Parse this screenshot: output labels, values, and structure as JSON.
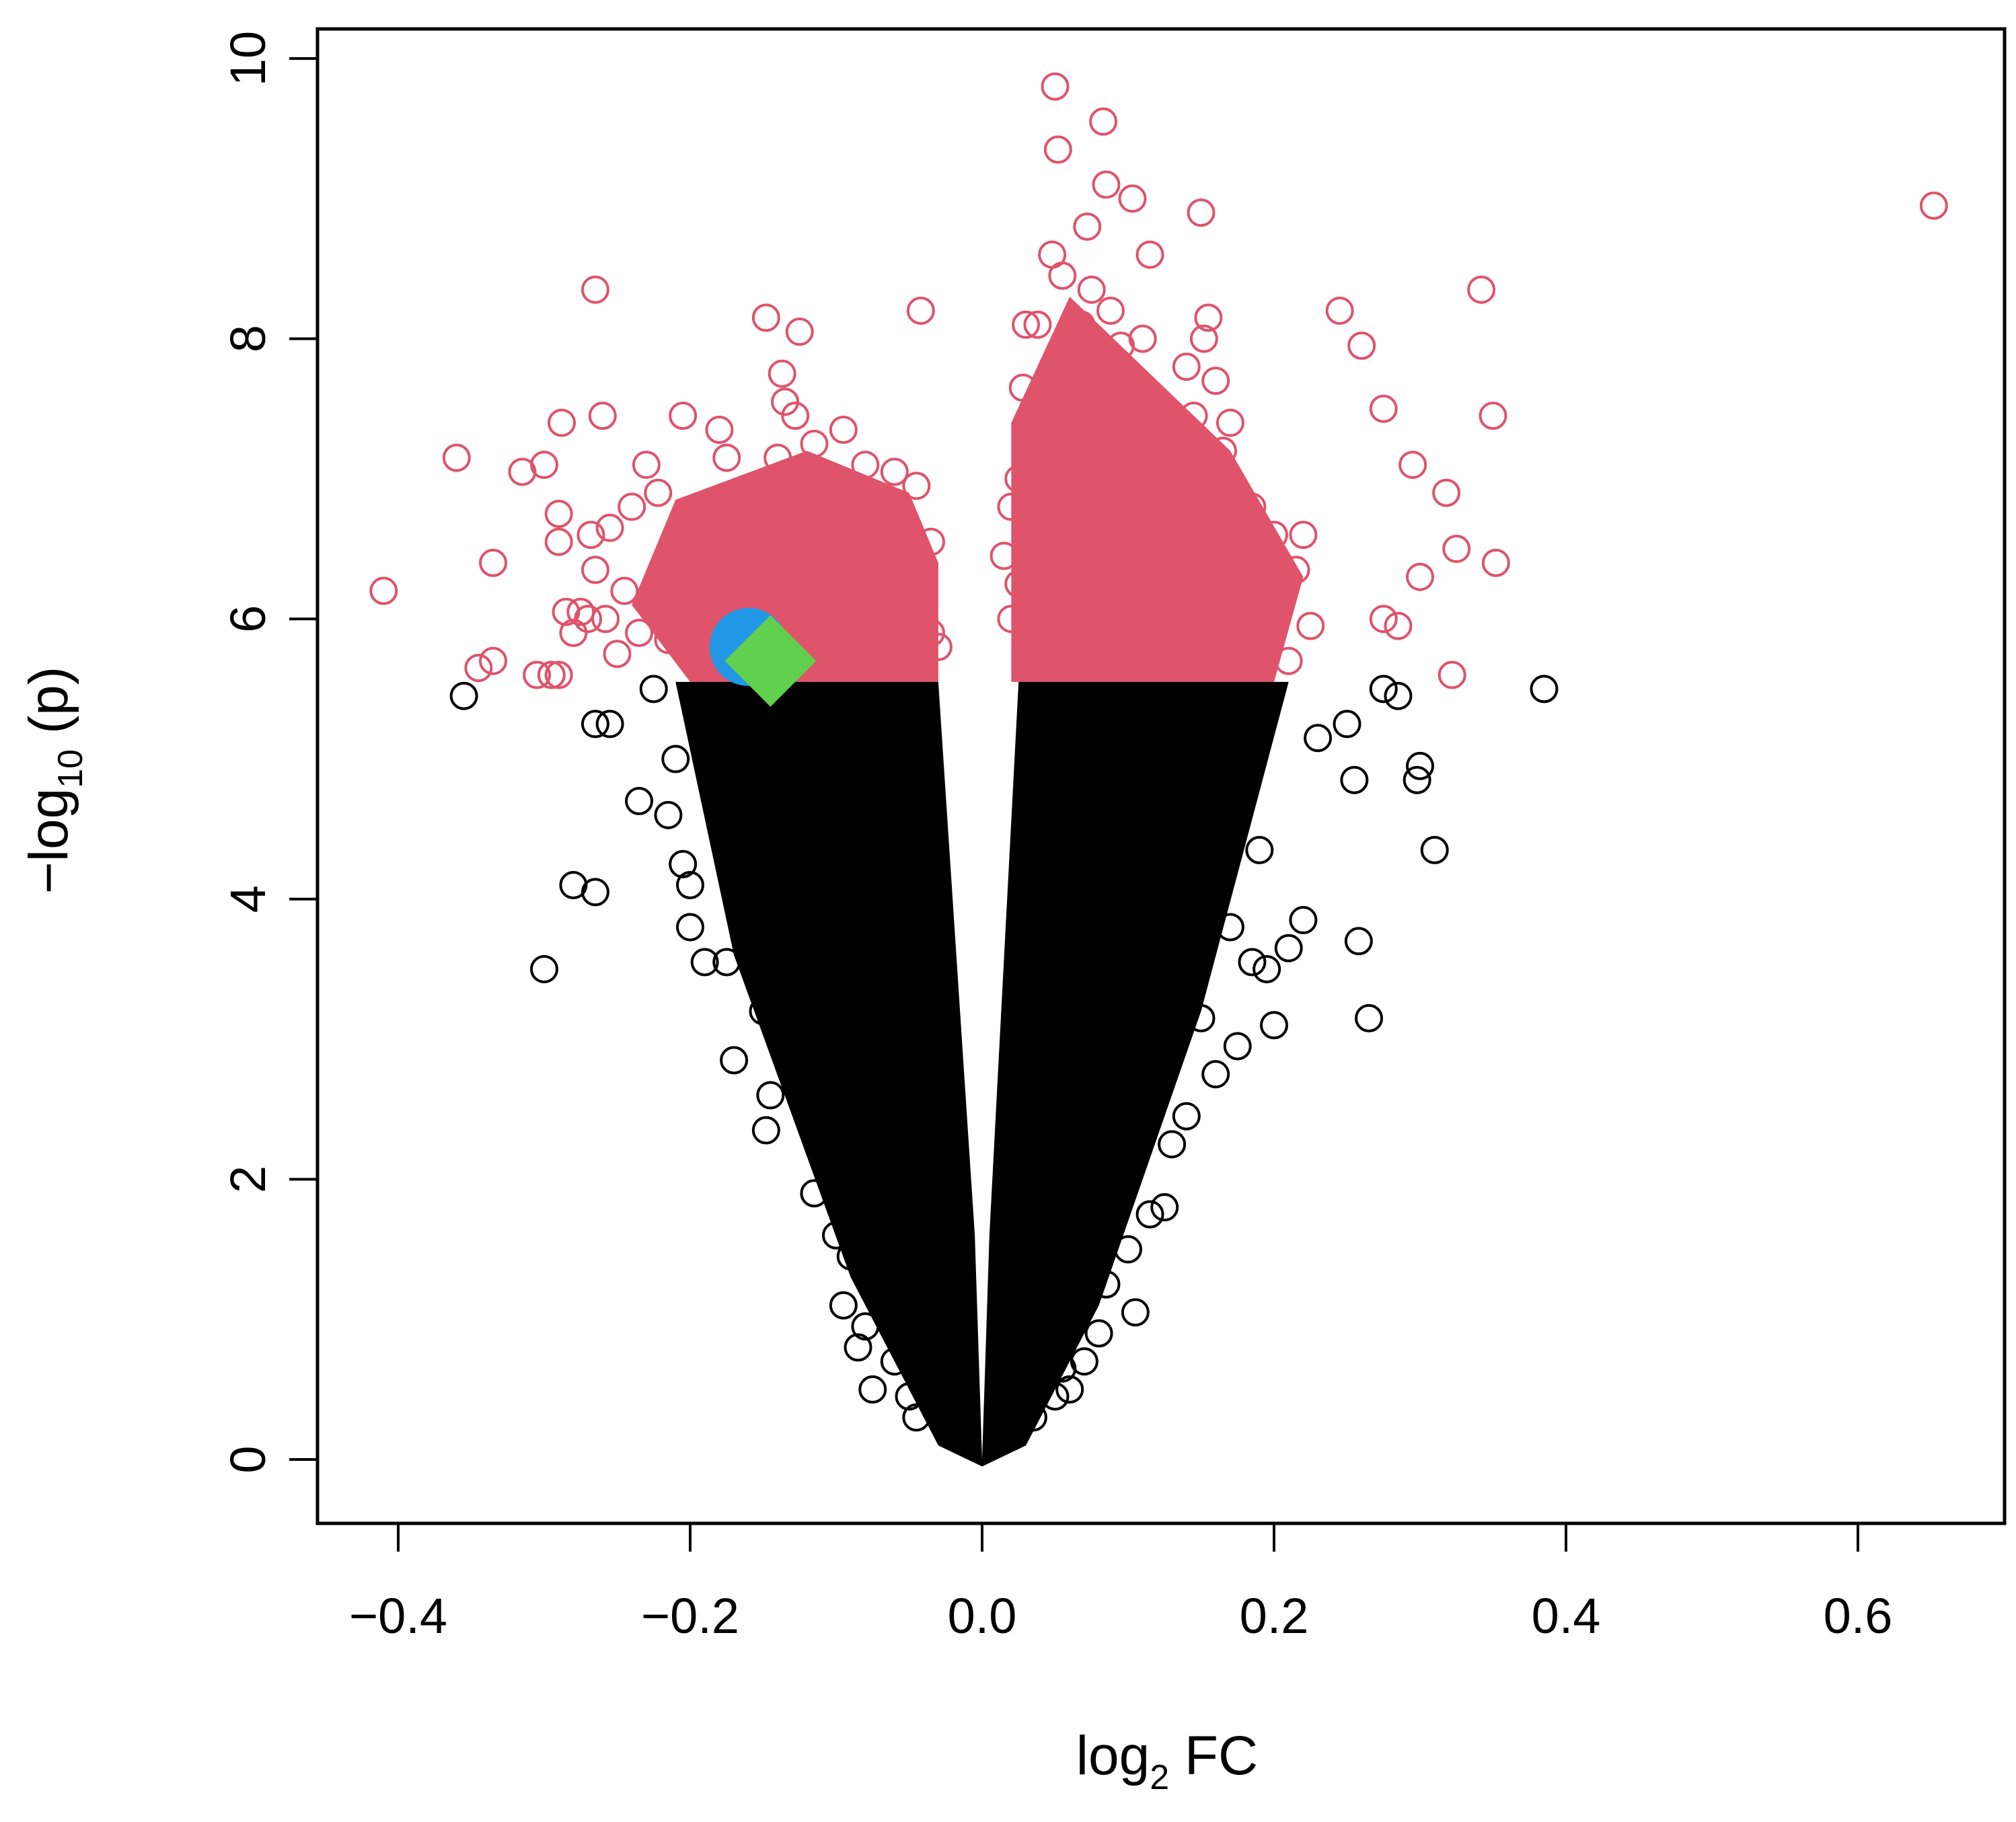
{
  "chart_data": {
    "type": "scatter",
    "title": "",
    "xlabel": {
      "main": "log",
      "sub": "2",
      "rest": " FC"
    },
    "ylabel": {
      "main": "−log",
      "sub": "10",
      "rest": " (p)"
    },
    "xlim": [
      -0.45,
      0.7
    ],
    "ylim": [
      -0.4,
      10.1
    ],
    "x_ticks": [
      -0.4,
      -0.2,
      0.0,
      0.2,
      0.4,
      0.6
    ],
    "x_tick_labels": [
      "−0.4",
      "−0.2",
      "0.0",
      "0.2",
      "0.4",
      "0.6"
    ],
    "y_ticks": [
      0,
      2,
      4,
      6,
      8,
      10
    ],
    "y_tick_labels": [
      "0",
      "2",
      "4",
      "6",
      "8",
      "10"
    ],
    "significance_threshold": 5.55,
    "series": [
      {
        "marker": "open-circle",
        "color": "#df536b",
        "note_points": "significant",
        "points": [
          [
            -0.41,
            6.2
          ],
          [
            -0.36,
            7.15
          ],
          [
            -0.345,
            5.65
          ],
          [
            -0.335,
            6.4
          ],
          [
            -0.335,
            5.7
          ],
          [
            -0.315,
            7.05
          ],
          [
            -0.305,
            5.6
          ],
          [
            -0.3,
            7.1
          ],
          [
            -0.295,
            5.6
          ],
          [
            -0.29,
            6.55
          ],
          [
            -0.29,
            6.75
          ],
          [
            -0.29,
            5.6
          ],
          [
            -0.288,
            7.4
          ],
          [
            -0.285,
            6.05
          ],
          [
            -0.28,
            5.9
          ],
          [
            -0.275,
            6.05
          ],
          [
            -0.27,
            6.0
          ],
          [
            -0.268,
            6.6
          ],
          [
            -0.265,
            6.35
          ],
          [
            -0.265,
            8.35
          ],
          [
            -0.26,
            7.45
          ],
          [
            -0.258,
            6.0
          ],
          [
            -0.255,
            6.65
          ],
          [
            -0.25,
            5.75
          ],
          [
            -0.245,
            6.2
          ],
          [
            -0.24,
            6.8
          ],
          [
            -0.235,
            5.9
          ],
          [
            -0.23,
            7.1
          ],
          [
            -0.222,
            6.9
          ],
          [
            -0.215,
            5.85
          ],
          [
            -0.21,
            6.1
          ],
          [
            -0.205,
            7.45
          ],
          [
            -0.2,
            6.7
          ],
          [
            -0.195,
            6.35
          ],
          [
            -0.19,
            5.95
          ],
          [
            -0.185,
            6.8
          ],
          [
            -0.18,
            7.35
          ],
          [
            -0.175,
            7.15
          ],
          [
            -0.17,
            6.45
          ],
          [
            -0.165,
            6.9
          ],
          [
            -0.16,
            5.7
          ],
          [
            -0.155,
            6.9
          ],
          [
            -0.15,
            6.3
          ],
          [
            -0.148,
            8.15
          ],
          [
            -0.14,
            7.15
          ],
          [
            -0.137,
            7.75
          ],
          [
            -0.135,
            7.55
          ],
          [
            -0.13,
            6.95
          ],
          [
            -0.128,
            7.45
          ],
          [
            -0.125,
            8.05
          ],
          [
            -0.12,
            6.4
          ],
          [
            -0.115,
            7.25
          ],
          [
            -0.11,
            6.7
          ],
          [
            -0.105,
            6.0
          ],
          [
            -0.1,
            6.95
          ],
          [
            -0.095,
            7.35
          ],
          [
            -0.09,
            6.5
          ],
          [
            -0.085,
            5.7
          ],
          [
            -0.08,
            7.1
          ],
          [
            -0.075,
            6.0
          ],
          [
            -0.07,
            6.8
          ],
          [
            -0.065,
            6.3
          ],
          [
            -0.06,
            7.05
          ],
          [
            -0.055,
            5.85
          ],
          [
            -0.05,
            6.45
          ],
          [
            -0.045,
            6.95
          ],
          [
            -0.042,
            8.2
          ],
          [
            -0.04,
            6.1
          ],
          [
            -0.035,
            6.55
          ],
          [
            -0.03,
            5.8
          ],
          [
            -0.17,
            6.05
          ],
          [
            -0.16,
            6.35
          ],
          [
            -0.15,
            6.6
          ],
          [
            -0.14,
            6.1
          ],
          [
            -0.13,
            6.5
          ],
          [
            -0.12,
            5.95
          ],
          [
            -0.11,
            6.3
          ],
          [
            -0.1,
            6.2
          ],
          [
            -0.09,
            6.05
          ],
          [
            -0.08,
            6.35
          ],
          [
            -0.075,
            5.8
          ],
          [
            -0.07,
            6.15
          ],
          [
            -0.06,
            5.9
          ],
          [
            -0.055,
            6.25
          ],
          [
            -0.05,
            6.0
          ],
          [
            -0.04,
            6.35
          ],
          [
            -0.035,
            5.9
          ],
          [
            -0.18,
            6.55
          ],
          [
            -0.19,
            6.6
          ],
          [
            -0.2,
            6.2
          ],
          [
            0.015,
            6.45
          ],
          [
            0.02,
            6.8
          ],
          [
            0.025,
            7.0
          ],
          [
            0.028,
            7.65
          ],
          [
            0.03,
            8.1
          ],
          [
            0.035,
            7.3
          ],
          [
            0.038,
            8.1
          ],
          [
            0.04,
            6.2
          ],
          [
            0.045,
            7.1
          ],
          [
            0.048,
            8.6
          ],
          [
            0.05,
            9.8
          ],
          [
            0.052,
            9.35
          ],
          [
            0.055,
            8.45
          ],
          [
            0.058,
            7.9
          ],
          [
            0.06,
            7.4
          ],
          [
            0.065,
            6.5
          ],
          [
            0.068,
            8.1
          ],
          [
            0.07,
            7.8
          ],
          [
            0.072,
            8.8
          ],
          [
            0.075,
            8.35
          ],
          [
            0.078,
            7.55
          ],
          [
            0.08,
            6.9
          ],
          [
            0.083,
            9.55
          ],
          [
            0.085,
            9.1
          ],
          [
            0.088,
            8.2
          ],
          [
            0.09,
            7.2
          ],
          [
            0.095,
            7.95
          ],
          [
            0.1,
            6.75
          ],
          [
            0.103,
            9.0
          ],
          [
            0.105,
            7.6
          ],
          [
            0.11,
            8.0
          ],
          [
            0.115,
            8.6
          ],
          [
            0.12,
            7.3
          ],
          [
            0.125,
            6.8
          ],
          [
            0.13,
            7.1
          ],
          [
            0.135,
            6.4
          ],
          [
            0.14,
            7.8
          ],
          [
            0.145,
            7.45
          ],
          [
            0.15,
            8.9
          ],
          [
            0.152,
            8.0
          ],
          [
            0.155,
            8.15
          ],
          [
            0.16,
            7.7
          ],
          [
            0.165,
            7.2
          ],
          [
            0.17,
            7.4
          ],
          [
            0.175,
            6.9
          ],
          [
            0.18,
            6.5
          ],
          [
            0.185,
            6.8
          ],
          [
            0.19,
            6.1
          ],
          [
            0.195,
            5.8
          ],
          [
            0.2,
            6.6
          ],
          [
            0.205,
            6.2
          ],
          [
            0.21,
            5.7
          ],
          [
            0.215,
            6.35
          ],
          [
            0.22,
            6.6
          ],
          [
            0.225,
            5.95
          ],
          [
            0.245,
            8.2
          ],
          [
            0.26,
            7.95
          ],
          [
            0.275,
            7.5
          ],
          [
            0.275,
            6.0
          ],
          [
            0.285,
            5.95
          ],
          [
            0.295,
            7.1
          ],
          [
            0.3,
            6.3
          ],
          [
            0.318,
            6.9
          ],
          [
            0.322,
            5.6
          ],
          [
            0.325,
            6.5
          ],
          [
            0.342,
            8.35
          ],
          [
            0.35,
            7.45
          ],
          [
            0.352,
            6.4
          ],
          [
            0.652,
            8.95
          ],
          [
            0.02,
            6.0
          ],
          [
            0.025,
            6.25
          ],
          [
            0.03,
            5.85
          ],
          [
            0.035,
            6.6
          ],
          [
            0.04,
            5.75
          ],
          [
            0.045,
            6.35
          ],
          [
            0.05,
            6.0
          ],
          [
            0.055,
            6.9
          ],
          [
            0.06,
            5.8
          ],
          [
            0.065,
            6.15
          ],
          [
            0.07,
            6.6
          ],
          [
            0.075,
            5.9
          ],
          [
            0.08,
            6.3
          ],
          [
            0.085,
            6.7
          ],
          [
            0.09,
            5.85
          ],
          [
            0.095,
            6.4
          ],
          [
            0.1,
            6.05
          ],
          [
            0.105,
            6.55
          ],
          [
            0.11,
            5.75
          ],
          [
            0.115,
            6.3
          ],
          [
            0.12,
            5.95
          ],
          [
            0.125,
            6.2
          ],
          [
            0.13,
            5.8
          ],
          [
            0.135,
            6.0
          ],
          [
            0.14,
            6.25
          ],
          [
            0.145,
            5.7
          ],
          [
            0.15,
            6.05
          ],
          [
            0.16,
            5.9
          ],
          [
            0.17,
            6.15
          ],
          [
            0.18,
            5.75
          ],
          [
            0.06,
            7.0
          ],
          [
            0.07,
            7.15
          ],
          [
            0.08,
            7.45
          ],
          [
            0.09,
            6.5
          ],
          [
            0.1,
            7.35
          ],
          [
            0.11,
            6.9
          ],
          [
            0.12,
            6.55
          ],
          [
            0.05,
            6.6
          ],
          [
            0.04,
            7.05
          ],
          [
            0.03,
            6.7
          ]
        ]
      },
      {
        "marker": "open-circle",
        "color": "#000000",
        "note_points": "not significant",
        "points": [
          [
            -0.355,
            5.45
          ],
          [
            -0.3,
            3.5
          ],
          [
            -0.28,
            4.1
          ],
          [
            -0.265,
            4.05
          ],
          [
            -0.265,
            5.25
          ],
          [
            -0.255,
            5.25
          ],
          [
            -0.235,
            4.7
          ],
          [
            -0.225,
            5.5
          ],
          [
            -0.215,
            4.6
          ],
          [
            -0.21,
            5.0
          ],
          [
            -0.205,
            4.25
          ],
          [
            -0.2,
            3.8
          ],
          [
            -0.2,
            4.1
          ],
          [
            -0.19,
            3.55
          ],
          [
            -0.185,
            4.85
          ],
          [
            -0.18,
            5.2
          ],
          [
            -0.175,
            3.55
          ],
          [
            -0.17,
            4.3
          ],
          [
            -0.17,
            2.85
          ],
          [
            -0.165,
            3.9
          ],
          [
            -0.16,
            4.6
          ],
          [
            -0.15,
            3.2
          ],
          [
            -0.148,
            2.35
          ],
          [
            -0.145,
            2.6
          ],
          [
            -0.14,
            3.4
          ],
          [
            -0.135,
            2.95
          ],
          [
            -0.125,
            3.6
          ],
          [
            -0.115,
            1.9
          ],
          [
            -0.1,
            1.6
          ],
          [
            -0.095,
            1.1
          ],
          [
            -0.09,
            1.45
          ],
          [
            -0.085,
            0.8
          ],
          [
            -0.08,
            0.95
          ],
          [
            -0.075,
            0.5
          ],
          [
            -0.07,
            1.2
          ],
          [
            -0.06,
            0.7
          ],
          [
            -0.055,
            1.35
          ],
          [
            -0.05,
            0.45
          ],
          [
            -0.045,
            0.3
          ],
          [
            -0.04,
            0.9
          ],
          [
            0.385,
            5.5
          ],
          [
            0.31,
            4.35
          ],
          [
            0.3,
            4.95
          ],
          [
            0.298,
            4.85
          ],
          [
            0.285,
            5.45
          ],
          [
            0.275,
            5.5
          ],
          [
            0.265,
            3.15
          ],
          [
            0.258,
            3.7
          ],
          [
            0.255,
            4.85
          ],
          [
            0.25,
            5.25
          ],
          [
            0.23,
            5.15
          ],
          [
            0.22,
            3.85
          ],
          [
            0.21,
            3.65
          ],
          [
            0.2,
            3.1
          ],
          [
            0.195,
            3.5
          ],
          [
            0.19,
            4.35
          ],
          [
            0.185,
            3.55
          ],
          [
            0.175,
            2.95
          ],
          [
            0.17,
            3.8
          ],
          [
            0.16,
            2.75
          ],
          [
            0.15,
            3.15
          ],
          [
            0.14,
            2.45
          ],
          [
            0.13,
            2.25
          ],
          [
            0.125,
            1.8
          ],
          [
            0.115,
            1.75
          ],
          [
            0.105,
            1.05
          ],
          [
            0.1,
            1.5
          ],
          [
            0.09,
            2.1
          ],
          [
            0.085,
            1.25
          ],
          [
            0.08,
            0.9
          ],
          [
            0.075,
            1.55
          ],
          [
            0.07,
            0.7
          ],
          [
            0.065,
            1.05
          ],
          [
            0.06,
            0.5
          ],
          [
            0.055,
            0.65
          ],
          [
            0.05,
            0.45
          ],
          [
            0.04,
            0.8
          ],
          [
            0.035,
            0.3
          ],
          [
            0.03,
            0.55
          ],
          [
            0.02,
            0.2
          ]
        ]
      },
      {
        "marker": "filled-circle",
        "color": "#2297e6",
        "points": [
          [
            -0.16,
            5.8
          ]
        ]
      },
      {
        "marker": "filled-diamond",
        "color": "#61d04f",
        "points": [
          [
            -0.145,
            5.7
          ]
        ]
      }
    ]
  }
}
